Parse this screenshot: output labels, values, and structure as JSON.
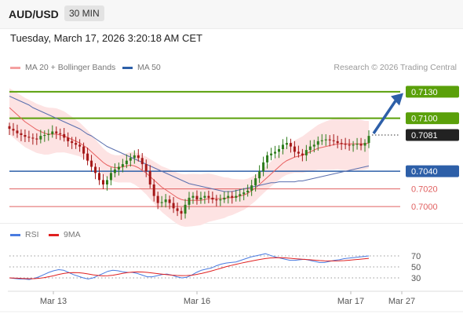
{
  "header": {
    "instrument": "AUD/USD",
    "timeframe": "30 MIN",
    "datetime": "Tuesday, March 17, 2026 3:20:18 AM CET"
  },
  "legend": {
    "ma20_label": "MA 20 + Bollinger Bands",
    "ma50_label": "MA 50",
    "copyright": "Research © 2026 Trading Central"
  },
  "rsi_legend": {
    "rsi_label": "RSI",
    "ma_label": "9MA"
  },
  "colors": {
    "resistance": "#5aa00a",
    "support": "#2d5fa8",
    "support_minor": "#e06060",
    "current": "#222222",
    "bollinger_fill": "#fde3e3",
    "ma20": "#e86060",
    "ma50": "#5a6fae",
    "candle_up": "#2e7d1c",
    "candle_down": "#a51818",
    "arrow": "#2d5fa8",
    "rsi": "#4a7be0",
    "rsi_ma": "#e02020"
  },
  "chart_data": [
    {
      "type": "candlestick",
      "title": "AUD/USD",
      "x_ticks": [
        "Mar 13",
        "Mar 16",
        "Mar 17",
        "Mar 27"
      ],
      "ylim": [
        0.6985,
        0.7145
      ],
      "levels": [
        {
          "value": 0.713,
          "label": "0.7130",
          "kind": "resistance"
        },
        {
          "value": 0.71,
          "label": "0.7100",
          "kind": "resistance"
        },
        {
          "value": 0.7081,
          "label": "0.7081",
          "kind": "current"
        },
        {
          "value": 0.704,
          "label": "0.7040",
          "kind": "support"
        },
        {
          "value": 0.702,
          "label": "0.7020",
          "kind": "support-minor"
        },
        {
          "value": 0.7,
          "label": "0.7000",
          "kind": "support-minor"
        }
      ],
      "target_arrow": {
        "from": 0.7081,
        "to": 0.7125
      },
      "closes": [
        0.7088,
        0.7086,
        0.7083,
        0.7081,
        0.7079,
        0.7078,
        0.7077,
        0.7076,
        0.708,
        0.7081,
        0.7082,
        0.7085,
        0.7083,
        0.7082,
        0.7078,
        0.7074,
        0.7072,
        0.707,
        0.7068,
        0.706,
        0.7052,
        0.7045,
        0.7038,
        0.703,
        0.7025,
        0.703,
        0.7038,
        0.7042,
        0.7045,
        0.7048,
        0.7052,
        0.7055,
        0.7058,
        0.7055,
        0.7048,
        0.704,
        0.7025,
        0.7012,
        0.7004,
        0.7005,
        0.7008,
        0.7004,
        0.6998,
        0.6995,
        0.6992,
        0.7002,
        0.701,
        0.7012,
        0.7008,
        0.701,
        0.7012,
        0.701,
        0.7008,
        0.7007,
        0.7008,
        0.701,
        0.7012,
        0.701,
        0.7012,
        0.7014,
        0.7016,
        0.7018,
        0.7024,
        0.7032,
        0.704,
        0.705,
        0.7058,
        0.706,
        0.7062,
        0.7065,
        0.707,
        0.7072,
        0.7068,
        0.7062,
        0.706,
        0.7058,
        0.7064,
        0.7068,
        0.707,
        0.7074,
        0.7075,
        0.7076,
        0.7075,
        0.7074,
        0.7072,
        0.7071,
        0.707,
        0.7069,
        0.707,
        0.7071,
        0.7069,
        0.7072,
        0.708
      ],
      "ma20": [
        0.7112,
        0.7108,
        0.7104,
        0.71,
        0.7096,
        0.7093,
        0.709,
        0.7087,
        0.7085,
        0.7083,
        0.7082,
        0.7082,
        0.7082,
        0.7081,
        0.708,
        0.7078,
        0.7076,
        0.7074,
        0.7072,
        0.7069,
        0.7066,
        0.7062,
        0.7058,
        0.7054,
        0.705,
        0.7047,
        0.7045,
        0.7044,
        0.7044,
        0.7045,
        0.7046,
        0.7047,
        0.7046,
        0.7044,
        0.7041,
        0.7038,
        0.7034,
        0.703,
        0.7026,
        0.7022,
        0.7019,
        0.7016,
        0.7013,
        0.701,
        0.7008,
        0.7007,
        0.7007,
        0.7007,
        0.7007,
        0.7007,
        0.7008,
        0.7009,
        0.7009,
        0.7009,
        0.7009,
        0.7009,
        0.701,
        0.701,
        0.7011,
        0.7012,
        0.7013,
        0.7015,
        0.7018,
        0.7021,
        0.7025,
        0.7029,
        0.7033,
        0.7037,
        0.7041,
        0.7045,
        0.7049,
        0.7052,
        0.7054,
        0.7056,
        0.7057,
        0.7058,
        0.706,
        0.7062,
        0.7064,
        0.7066,
        0.7067,
        0.7068,
        0.7069,
        0.707,
        0.7071,
        0.7071,
        0.7071,
        0.7071,
        0.7071,
        0.7071,
        0.7071,
        0.7071,
        0.7072
      ],
      "ma50": [
        0.7125,
        0.7123,
        0.7121,
        0.7119,
        0.7117,
        0.7115,
        0.7112,
        0.711,
        0.7108,
        0.7106,
        0.7104,
        0.7102,
        0.71,
        0.7098,
        0.7096,
        0.7094,
        0.7092,
        0.709,
        0.7088,
        0.7085,
        0.7082,
        0.708,
        0.7077,
        0.7074,
        0.7071,
        0.7068,
        0.7066,
        0.7064,
        0.7062,
        0.706,
        0.7058,
        0.7056,
        0.7054,
        0.7052,
        0.705,
        0.7048,
        0.7046,
        0.7044,
        0.7042,
        0.704,
        0.7038,
        0.7036,
        0.7034,
        0.7032,
        0.703,
        0.7028,
        0.7026,
        0.7025,
        0.7024,
        0.7023,
        0.7022,
        0.7021,
        0.702,
        0.7019,
        0.7018,
        0.7017,
        0.7017,
        0.7017,
        0.7018,
        0.7019,
        0.702,
        0.7021,
        0.7022,
        0.7023,
        0.7024,
        0.7025,
        0.7026,
        0.7027,
        0.7027,
        0.7028,
        0.7028,
        0.7028,
        0.7028,
        0.7028,
        0.7029,
        0.7029,
        0.703,
        0.7031,
        0.7032,
        0.7033,
        0.7034,
        0.7035,
        0.7036,
        0.7037,
        0.7038,
        0.7039,
        0.704,
        0.7041,
        0.7042,
        0.7043,
        0.7044,
        0.7045,
        0.7046
      ]
    },
    {
      "type": "line",
      "title": "RSI",
      "ylim": [
        10,
        90
      ],
      "y_ticks": [
        70,
        50,
        30
      ],
      "series": [
        {
          "name": "RSI",
          "values": [
            30,
            29,
            28,
            28,
            27,
            29,
            32,
            36,
            40,
            43,
            45,
            44,
            40,
            36,
            33,
            30,
            28,
            30,
            34,
            38,
            42,
            44,
            43,
            41,
            40,
            40,
            38,
            35,
            32,
            32,
            34,
            36,
            37,
            35,
            32,
            30,
            31,
            35,
            40,
            44,
            46,
            48,
            52,
            55,
            57,
            58,
            59,
            62,
            65,
            68,
            70,
            72,
            74,
            71,
            68,
            66,
            64,
            62,
            62,
            63,
            64,
            62,
            60,
            58,
            58,
            60,
            62,
            63,
            65,
            66,
            67,
            68,
            69,
            70
          ]
        },
        {
          "name": "9MA",
          "values": [
            30,
            29.6,
            29.2,
            28.8,
            28.5,
            28.6,
            29.2,
            30.4,
            32.1,
            34.0,
            36.2,
            38.1,
            39.3,
            39.7,
            39.4,
            38.5,
            37.1,
            35.6,
            34.4,
            33.7,
            33.9,
            34.9,
            36.5,
            38.2,
            39.6,
            40.5,
            40.9,
            40.7,
            40.0,
            39.0,
            37.8,
            36.8,
            35.9,
            35.0,
            34.4,
            34.1,
            34.2,
            34.9,
            36.3,
            38.1,
            40.2,
            42.5,
            45.1,
            47.7,
            50.3,
            52.6,
            54.7,
            56.7,
            58.6,
            60.4,
            62.1,
            63.7,
            65.2,
            66.2,
            66.6,
            66.8,
            66.4,
            65.7,
            64.9,
            64.2,
            63.6,
            63.0,
            62.3,
            61.6,
            61.1,
            60.9,
            60.9,
            61.0,
            61.5,
            62.2,
            63.0,
            63.8,
            64.6,
            65.5
          ]
        }
      ]
    }
  ]
}
